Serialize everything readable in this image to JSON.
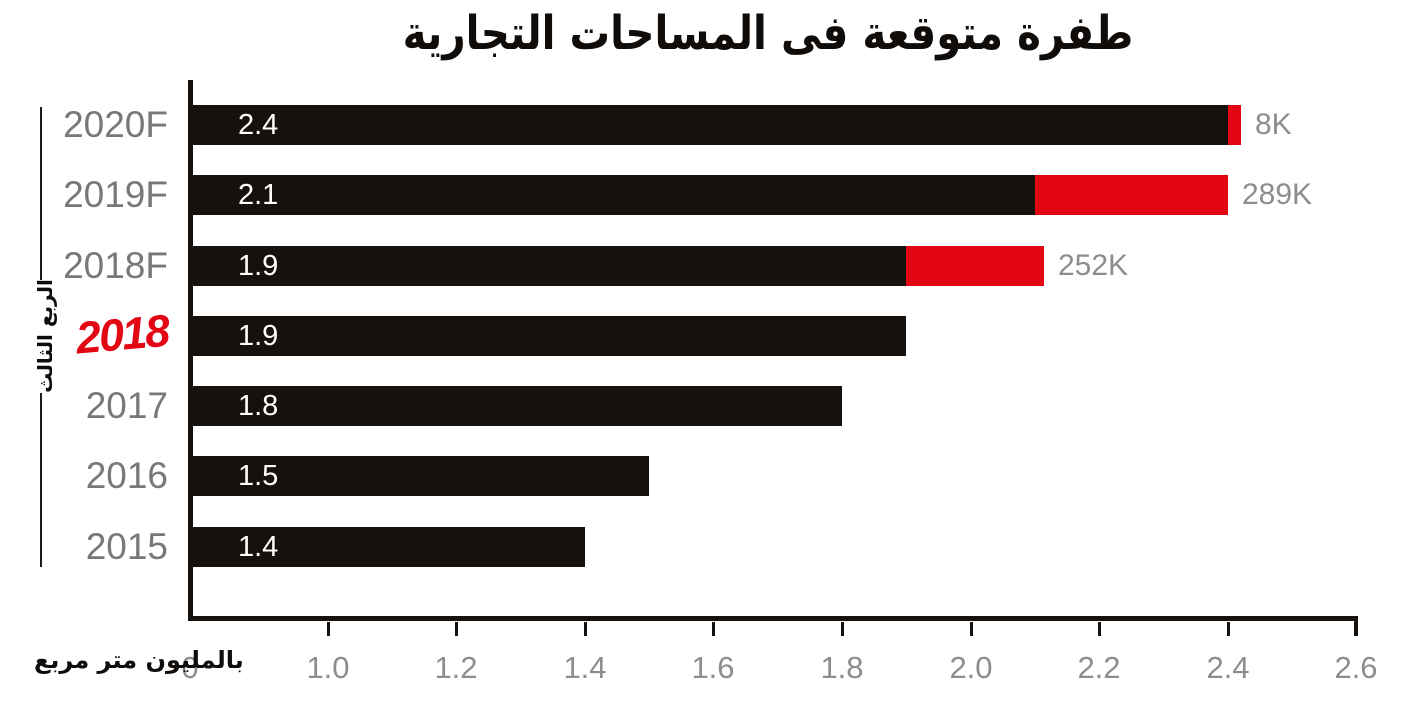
{
  "title": "طفرة متوقعة فى المساحات التجارية",
  "chart_data": {
    "type": "bar",
    "orientation": "horizontal",
    "title": "طفرة متوقعة فى المساحات التجارية",
    "unit_label": "بالمليون متر مربع",
    "group_label": "الربع الثالث",
    "categories": [
      "2020F",
      "2019F",
      "2018F",
      "2018",
      "2017",
      "2016",
      "2015"
    ],
    "rows": [
      {
        "label": "2020F",
        "value": 2.4,
        "value_label": "2.4",
        "extension_label": "8K",
        "red_end": 2.42,
        "highlight": false
      },
      {
        "label": "2019F",
        "value": 2.1,
        "value_label": "2.1",
        "extension_label": "289K",
        "red_end": 2.4,
        "highlight": false
      },
      {
        "label": "2018F",
        "value": 1.9,
        "value_label": "1.9",
        "extension_label": "252K",
        "red_end": 2.115,
        "highlight": false
      },
      {
        "label": "2018",
        "value": 1.9,
        "value_label": "1.9",
        "extension_label": "",
        "red_end": null,
        "highlight": true
      },
      {
        "label": "2017",
        "value": 1.8,
        "value_label": "1.8",
        "extension_label": "",
        "red_end": null,
        "highlight": false
      },
      {
        "label": "2016",
        "value": 1.5,
        "value_label": "1.5",
        "extension_label": "",
        "red_end": null,
        "highlight": false
      },
      {
        "label": "2015",
        "value": 1.4,
        "value_label": "1.4",
        "extension_label": "",
        "red_end": null,
        "highlight": false
      }
    ],
    "x_ticks": [
      "0",
      "1.0",
      "1.2",
      "1.4",
      "1.6",
      "1.8",
      "2.0",
      "2.2",
      "2.4",
      "2.6"
    ],
    "tick_values": [
      0,
      1.0,
      1.2,
      1.4,
      1.6,
      1.8,
      2.0,
      2.2,
      2.4,
      2.6
    ],
    "axis": {
      "origin_value": 0.786,
      "max": 2.6,
      "truncated": true
    },
    "legend_position": "none",
    "grid": false,
    "colors": {
      "bar_black": "#16110d",
      "accent_red": "#e30613",
      "year_label_gray": "#77787b",
      "tick_label_gray": "#8c8d8f",
      "value_label_white": "#ffffff",
      "highlight_red": "#e30613"
    }
  }
}
